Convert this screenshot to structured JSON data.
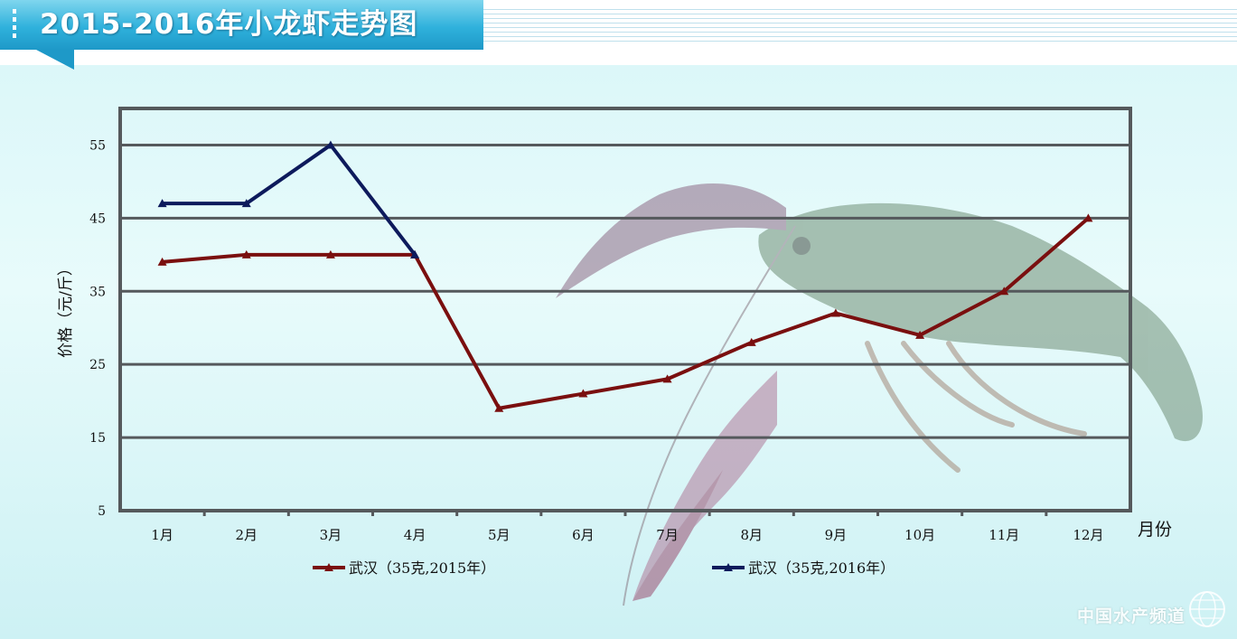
{
  "header": {
    "title": "2015-2016年小龙虾走势图"
  },
  "watermark": {
    "text": "中国水产频道"
  },
  "colors": {
    "series_2015": "#7a0f0f",
    "series_2016": "#0d1a5c",
    "grid": "#55595c"
  },
  "chart_data": {
    "type": "line",
    "title": "",
    "xlabel": "月份",
    "ylabel": "价格（元/斤）",
    "categories": [
      "1月",
      "2月",
      "3月",
      "4月",
      "5月",
      "6月",
      "7月",
      "8月",
      "9月",
      "10月",
      "11月",
      "12月"
    ],
    "yticks": [
      5,
      15,
      25,
      35,
      45,
      55
    ],
    "ylim": [
      5,
      60
    ],
    "grid": true,
    "legend_position": "bottom",
    "series": [
      {
        "name": "武汉（35克,2015年）",
        "values": [
          39,
          40,
          40,
          40,
          19,
          21,
          23,
          28,
          32,
          29,
          35,
          45
        ]
      },
      {
        "name": "武汉（35克,2016年）",
        "values": [
          47,
          47,
          55,
          40,
          null,
          null,
          null,
          null,
          null,
          null,
          null,
          null
        ]
      }
    ]
  }
}
